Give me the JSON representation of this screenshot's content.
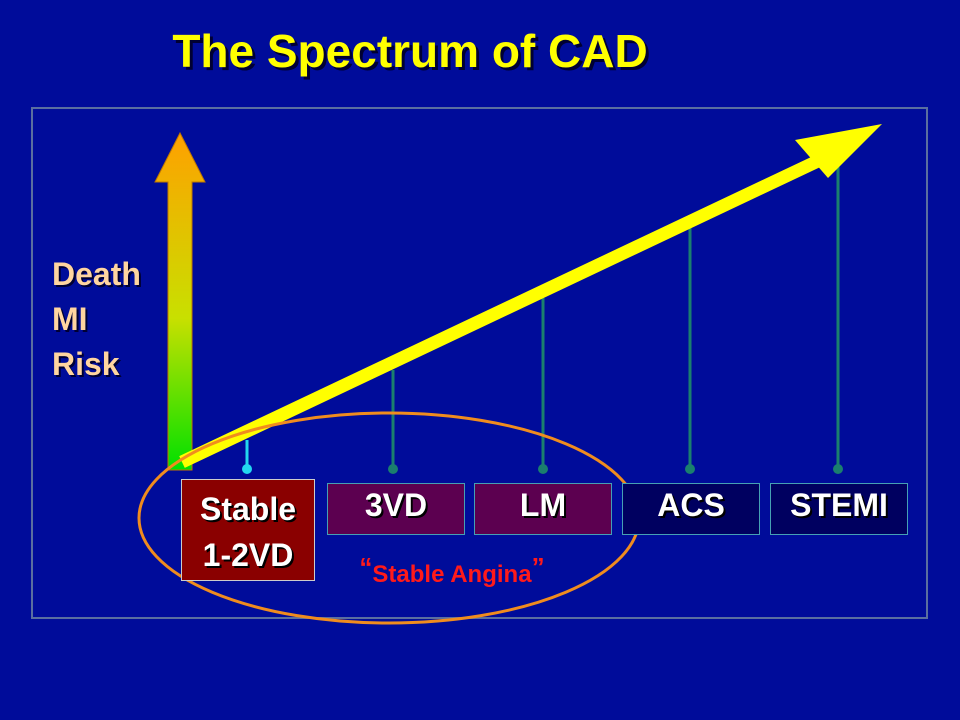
{
  "title": "The Spectrum of CAD",
  "y_axis_label": [
    "Death",
    "MI",
    "Risk"
  ],
  "categories": [
    {
      "lines": [
        "Stable",
        "1-2VD"
      ]
    },
    {
      "lines": [
        "3VD"
      ]
    },
    {
      "lines": [
        "LM"
      ]
    },
    {
      "lines": [
        "ACS"
      ]
    },
    {
      "lines": [
        "STEMI"
      ]
    }
  ],
  "annotation": {
    "open_quote": "“",
    "text": "Stable Angina",
    "close_quote": "”"
  },
  "colors": {
    "background": "#000c9a",
    "title": "#ffff00",
    "trend_arrow": "#ffff00",
    "risk_arrow_top": "#ffa000",
    "risk_arrow_bottom": "#00e000",
    "ellipse": "#f08c1e",
    "annotation": "#ff1a1a"
  }
}
